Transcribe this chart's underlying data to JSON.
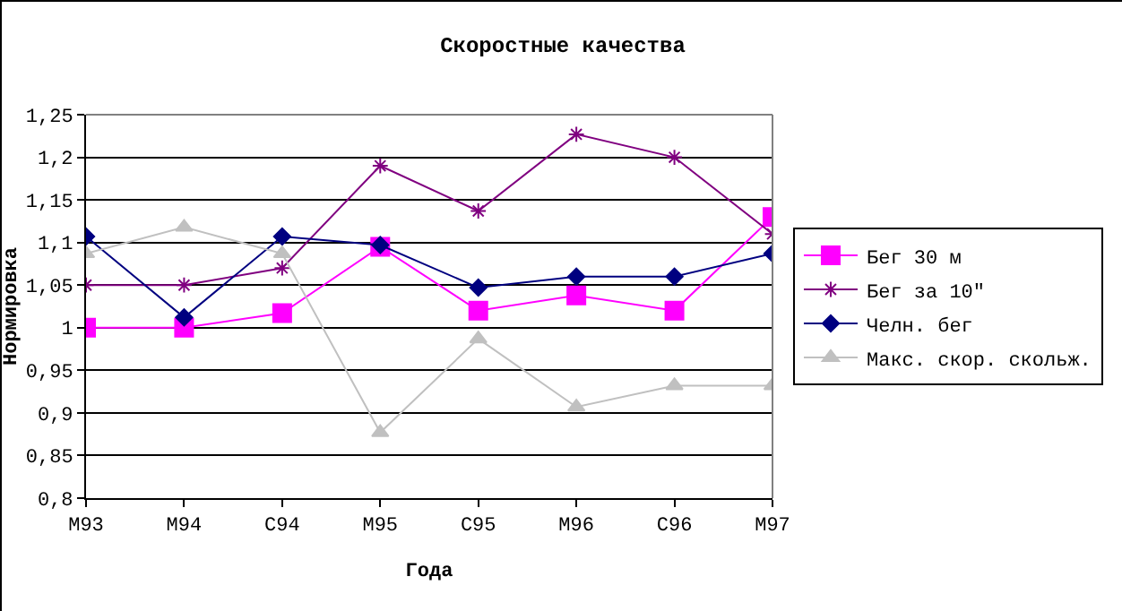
{
  "chart_data": {
    "type": "line",
    "title": "Скоростные качества",
    "xlabel": "Года",
    "ylabel": "Нормировка",
    "categories": [
      "M93",
      "M94",
      "C94",
      "M95",
      "C95",
      "M96",
      "C96",
      "M97"
    ],
    "series": [
      {
        "name": "Бег 30 м",
        "color": "#ff00ff",
        "marker": "square",
        "values": [
          1.0,
          1.0,
          1.017,
          1.095,
          1.02,
          1.038,
          1.02,
          1.13
        ]
      },
      {
        "name": "Бег за 10\"",
        "color": "#800080",
        "marker": "cross",
        "values": [
          1.05,
          1.05,
          1.07,
          1.19,
          1.137,
          1.227,
          1.2,
          1.11
        ]
      },
      {
        "name": "Челн. бег",
        "color": "#000080",
        "marker": "diamond",
        "values": [
          1.107,
          1.012,
          1.107,
          1.097,
          1.047,
          1.06,
          1.06,
          1.087
        ]
      },
      {
        "name": "Макс. скор. скольж.",
        "color": "#c0c0c0",
        "marker": "triangle",
        "values": [
          1.087,
          1.118,
          1.087,
          0.877,
          0.987,
          0.907,
          0.932,
          0.932
        ]
      }
    ],
    "ylim": [
      0.8,
      1.25
    ],
    "yticks": [
      {
        "value": 0.8,
        "label": "0,8"
      },
      {
        "value": 0.85,
        "label": "0,85"
      },
      {
        "value": 0.9,
        "label": "0,9"
      },
      {
        "value": 0.95,
        "label": "0,95"
      },
      {
        "value": 1,
        "label": "1"
      },
      {
        "value": 1.05,
        "label": "1,05"
      },
      {
        "value": 1.1,
        "label": "1,1"
      },
      {
        "value": 1.15,
        "label": "1,15"
      },
      {
        "value": 1.2,
        "label": "1,2"
      },
      {
        "value": 1.25,
        "label": "1,25"
      }
    ],
    "grid": "y",
    "legend": "right"
  }
}
